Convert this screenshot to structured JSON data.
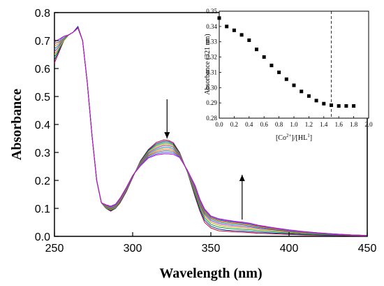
{
  "chart_data": [
    {
      "type": "line",
      "xlabel": "Wavelength (nm)",
      "ylabel": "Absorbance",
      "xlim": [
        250,
        450
      ],
      "ylim": [
        0.0,
        0.8
      ],
      "x_ticks": [
        250,
        300,
        350,
        400,
        450
      ],
      "y_ticks": [
        0.0,
        0.1,
        0.2,
        0.3,
        0.4,
        0.5,
        0.6,
        0.7,
        0.8
      ],
      "x": [
        250,
        253,
        256,
        259,
        262,
        265,
        268,
        271,
        274,
        277,
        280,
        283,
        286,
        289,
        292,
        296,
        300,
        305,
        310,
        315,
        320,
        323,
        326,
        330,
        335,
        340,
        343,
        346,
        350,
        355,
        360,
        365,
        370,
        375,
        380,
        390,
        400,
        410,
        420,
        430,
        440,
        450
      ],
      "series": [
        {
          "color": "#cc0033",
          "values": [
            0.62,
            0.66,
            0.7,
            0.72,
            0.73,
            0.75,
            0.7,
            0.55,
            0.36,
            0.2,
            0.12,
            0.1,
            0.09,
            0.1,
            0.12,
            0.16,
            0.21,
            0.27,
            0.31,
            0.335,
            0.345,
            0.343,
            0.335,
            0.3,
            0.23,
            0.14,
            0.09,
            0.05,
            0.03,
            0.02,
            0.018,
            0.016,
            0.015,
            0.013,
            0.011,
            0.009,
            0.007,
            0.005,
            0.004,
            0.003,
            0.002,
            0.001
          ]
        },
        {
          "color": "#003399",
          "values": [
            0.63,
            0.665,
            0.7,
            0.72,
            0.73,
            0.75,
            0.7,
            0.55,
            0.36,
            0.2,
            0.12,
            0.1,
            0.092,
            0.1,
            0.122,
            0.162,
            0.212,
            0.268,
            0.308,
            0.33,
            0.34,
            0.339,
            0.331,
            0.298,
            0.23,
            0.145,
            0.095,
            0.058,
            0.036,
            0.026,
            0.022,
            0.02,
            0.019,
            0.017,
            0.015,
            0.012,
            0.009,
            0.007,
            0.005,
            0.004,
            0.003,
            0.002
          ]
        },
        {
          "color": "#009933",
          "values": [
            0.64,
            0.67,
            0.7,
            0.72,
            0.73,
            0.745,
            0.7,
            0.55,
            0.36,
            0.2,
            0.12,
            0.1,
            0.094,
            0.101,
            0.124,
            0.164,
            0.213,
            0.266,
            0.305,
            0.325,
            0.335,
            0.334,
            0.327,
            0.296,
            0.23,
            0.15,
            0.102,
            0.066,
            0.043,
            0.033,
            0.029,
            0.027,
            0.025,
            0.023,
            0.02,
            0.016,
            0.012,
            0.009,
            0.007,
            0.005,
            0.003,
            0.002
          ]
        },
        {
          "color": "#cc9900",
          "values": [
            0.65,
            0.675,
            0.7,
            0.72,
            0.73,
            0.745,
            0.7,
            0.55,
            0.36,
            0.2,
            0.12,
            0.102,
            0.096,
            0.103,
            0.126,
            0.166,
            0.214,
            0.264,
            0.301,
            0.32,
            0.33,
            0.329,
            0.323,
            0.294,
            0.231,
            0.155,
            0.108,
            0.073,
            0.05,
            0.04,
            0.035,
            0.033,
            0.031,
            0.028,
            0.025,
            0.02,
            0.015,
            0.011,
            0.008,
            0.006,
            0.004,
            0.003
          ]
        },
        {
          "color": "#9933cc",
          "values": [
            0.66,
            0.68,
            0.705,
            0.72,
            0.73,
            0.745,
            0.7,
            0.55,
            0.36,
            0.2,
            0.12,
            0.104,
            0.098,
            0.105,
            0.128,
            0.168,
            0.215,
            0.262,
            0.298,
            0.315,
            0.325,
            0.324,
            0.319,
            0.292,
            0.232,
            0.16,
            0.113,
            0.079,
            0.056,
            0.046,
            0.041,
            0.038,
            0.036,
            0.033,
            0.029,
            0.023,
            0.017,
            0.013,
            0.009,
            0.006,
            0.004,
            0.003
          ]
        },
        {
          "color": "#009999",
          "values": [
            0.67,
            0.685,
            0.705,
            0.72,
            0.73,
            0.745,
            0.7,
            0.55,
            0.36,
            0.2,
            0.12,
            0.106,
            0.1,
            0.107,
            0.13,
            0.17,
            0.216,
            0.26,
            0.294,
            0.31,
            0.318,
            0.318,
            0.313,
            0.29,
            0.233,
            0.165,
            0.118,
            0.084,
            0.061,
            0.051,
            0.046,
            0.043,
            0.041,
            0.037,
            0.032,
            0.025,
            0.019,
            0.014,
            0.01,
            0.007,
            0.005,
            0.003
          ]
        },
        {
          "color": "#ff6600",
          "values": [
            0.68,
            0.69,
            0.71,
            0.72,
            0.73,
            0.745,
            0.7,
            0.55,
            0.36,
            0.2,
            0.12,
            0.108,
            0.102,
            0.109,
            0.132,
            0.172,
            0.217,
            0.258,
            0.29,
            0.305,
            0.312,
            0.312,
            0.308,
            0.288,
            0.234,
            0.17,
            0.122,
            0.088,
            0.065,
            0.055,
            0.05,
            0.047,
            0.044,
            0.04,
            0.035,
            0.027,
            0.02,
            0.015,
            0.011,
            0.008,
            0.005,
            0.003
          ]
        },
        {
          "color": "#666666",
          "values": [
            0.69,
            0.695,
            0.71,
            0.72,
            0.73,
            0.745,
            0.7,
            0.55,
            0.36,
            0.2,
            0.12,
            0.11,
            0.104,
            0.111,
            0.134,
            0.173,
            0.217,
            0.256,
            0.287,
            0.3,
            0.306,
            0.306,
            0.303,
            0.286,
            0.235,
            0.174,
            0.126,
            0.092,
            0.068,
            0.058,
            0.053,
            0.05,
            0.047,
            0.043,
            0.037,
            0.029,
            0.021,
            0.016,
            0.011,
            0.008,
            0.005,
            0.003
          ]
        },
        {
          "color": "#3366ff",
          "values": [
            0.7,
            0.7,
            0.715,
            0.72,
            0.73,
            0.745,
            0.7,
            0.55,
            0.36,
            0.2,
            0.12,
            0.112,
            0.106,
            0.113,
            0.136,
            0.174,
            0.217,
            0.254,
            0.283,
            0.295,
            0.3,
            0.3,
            0.298,
            0.284,
            0.236,
            0.178,
            0.13,
            0.095,
            0.071,
            0.061,
            0.056,
            0.052,
            0.049,
            0.045,
            0.039,
            0.03,
            0.022,
            0.016,
            0.012,
            0.008,
            0.005,
            0.003
          ]
        },
        {
          "color": "#cc00cc",
          "values": [
            0.695,
            0.705,
            0.715,
            0.72,
            0.73,
            0.745,
            0.7,
            0.55,
            0.36,
            0.2,
            0.12,
            0.113,
            0.108,
            0.115,
            0.137,
            0.175,
            0.217,
            0.252,
            0.28,
            0.291,
            0.295,
            0.295,
            0.293,
            0.282,
            0.237,
            0.181,
            0.133,
            0.098,
            0.073,
            0.063,
            0.058,
            0.054,
            0.051,
            0.047,
            0.04,
            0.031,
            0.023,
            0.017,
            0.012,
            0.008,
            0.005,
            0.003
          ]
        }
      ],
      "annotations": [
        {
          "shape": "arrow-down",
          "x": 322,
          "y_from": 0.49,
          "y_to": 0.35
        },
        {
          "shape": "arrow-up",
          "x": 370,
          "y_from": 0.06,
          "y_to": 0.22
        }
      ]
    },
    {
      "type": "scatter",
      "xlabel_base": "[Co",
      "xlabel_sup": "2+",
      "xlabel_mid": "]/[HL",
      "xlabel_sup2": "1",
      "xlabel_end": "]",
      "ylabel": "Absorbance (321 nm)",
      "xlim": [
        0.0,
        2.0
      ],
      "ylim": [
        0.28,
        0.35
      ],
      "x_ticks": [
        "0.0",
        "0.2",
        "0.4",
        "0.6",
        "0.8",
        "1.0",
        "1.2",
        "1.4",
        "1.6",
        "1.8",
        "2.0"
      ],
      "y_ticks": [
        "0.28",
        "0.29",
        "0.30",
        "0.31",
        "0.32",
        "0.33",
        "0.34",
        "0.35"
      ],
      "x": [
        0.0,
        0.1,
        0.2,
        0.3,
        0.4,
        0.5,
        0.6,
        0.7,
        0.8,
        0.9,
        1.0,
        1.1,
        1.2,
        1.3,
        1.4,
        1.5,
        1.6,
        1.7,
        1.8
      ],
      "y": [
        0.3455,
        0.34,
        0.3375,
        0.3345,
        0.331,
        0.325,
        0.32,
        0.3145,
        0.31,
        0.3055,
        0.3015,
        0.2975,
        0.2945,
        0.2915,
        0.2895,
        0.2885,
        0.288,
        0.288,
        0.288
      ],
      "reference_line_x": 1.5
    }
  ]
}
